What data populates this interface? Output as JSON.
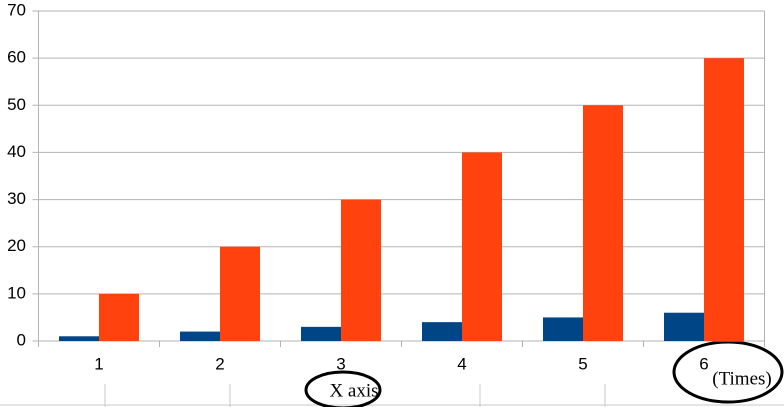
{
  "chart_data": {
    "type": "bar",
    "categories": [
      "1",
      "2",
      "3",
      "4",
      "5",
      "6"
    ],
    "series": [
      {
        "color": "#004586",
        "values": [
          1,
          2,
          3,
          4,
          5,
          6
        ]
      },
      {
        "color": "#ff420e",
        "values": [
          10,
          20,
          30,
          40,
          50,
          60
        ]
      }
    ],
    "ylim": [
      0,
      70
    ],
    "yticks": [
      0,
      10,
      20,
      30,
      40,
      50,
      60,
      70
    ],
    "grid": true,
    "x_label": "X axis",
    "annotation": "(Times)"
  }
}
